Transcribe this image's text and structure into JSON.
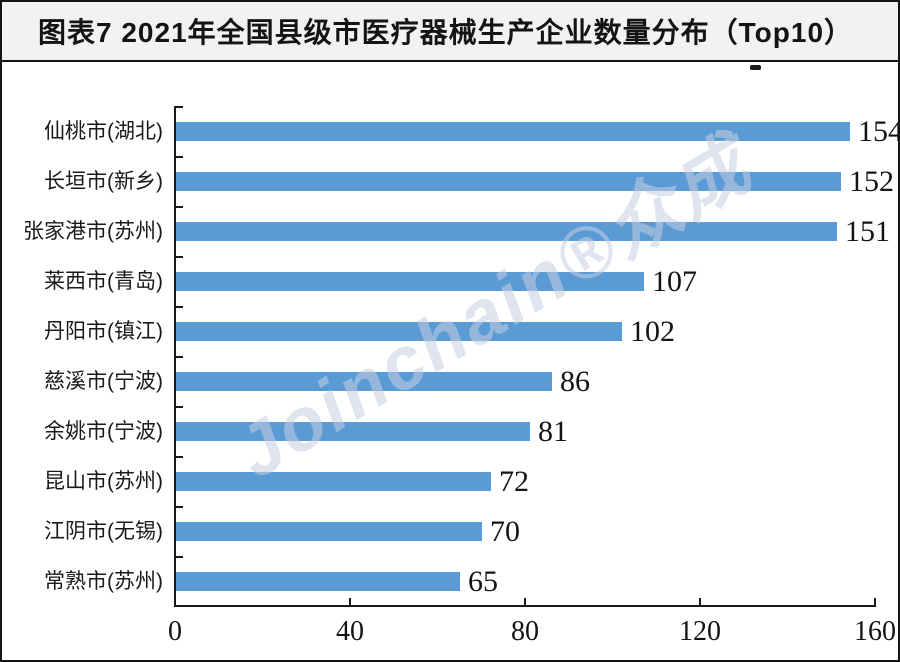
{
  "header": {
    "title": "图表7 2021年全国县级市医疗器械生产企业数量分布（Top10）"
  },
  "watermark": {
    "text": "Joinchain®众成"
  },
  "chart_data": {
    "type": "bar",
    "orientation": "horizontal",
    "title": "图表7 2021年全国县级市医疗器械生产企业数量分布（Top10）",
    "categories": [
      "仙桃市(湖北)",
      "长垣市(新乡)",
      "张家港市(苏州)",
      "莱西市(青岛)",
      "丹阳市(镇江)",
      "慈溪市(宁波)",
      "余姚市(宁波)",
      "昆山市(苏州)",
      "江阴市(无锡)",
      "常熟市(苏州)"
    ],
    "values": [
      154,
      152,
      151,
      107,
      102,
      86,
      81,
      72,
      70,
      65
    ],
    "value_labels_shown": true,
    "xlabel": "",
    "ylabel": "",
    "xlim": [
      0,
      160
    ],
    "x_ticks": [
      0,
      40,
      80,
      120,
      160
    ],
    "grid": false,
    "legend": "none"
  },
  "colors": {
    "bar": "#5b9bd5",
    "axis": "#1a1a1a",
    "text": "#141414",
    "title_background": "#f2f2f2",
    "frame_border": "#141414",
    "watermark": "rgba(198,205,224,0.55)"
  }
}
